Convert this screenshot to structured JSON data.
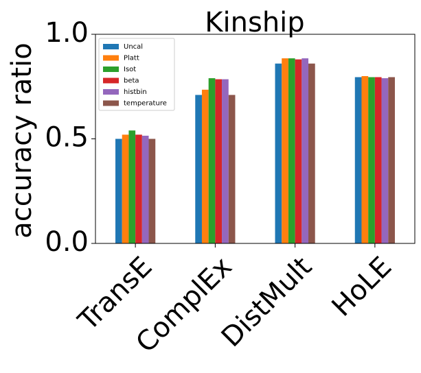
{
  "chart_data": {
    "type": "bar",
    "title": "Kinship",
    "xlabel": "",
    "ylabel": "accuracy ratio",
    "ylim": [
      0,
      1.0
    ],
    "yticks": [
      "0.0",
      "0.5",
      "1.0"
    ],
    "yticks_values": [
      0,
      0.5,
      1.0
    ],
    "categories": [
      "TransE",
      "ComplEx",
      "DistMult",
      "HoLE"
    ],
    "legend_position": "top-left",
    "series": [
      {
        "name": "Uncal",
        "color": "#1f77b4",
        "values": [
          0.5,
          0.71,
          0.86,
          0.795
        ]
      },
      {
        "name": "Platt",
        "color": "#ff7f0e",
        "values": [
          0.52,
          0.735,
          0.885,
          0.8
        ]
      },
      {
        "name": "Isot",
        "color": "#2ca02c",
        "values": [
          0.54,
          0.79,
          0.885,
          0.795
        ]
      },
      {
        "name": "beta",
        "color": "#d62728",
        "values": [
          0.52,
          0.785,
          0.88,
          0.795
        ]
      },
      {
        "name": "histbin",
        "color": "#9467bd",
        "values": [
          0.515,
          0.785,
          0.885,
          0.79
        ]
      },
      {
        "name": "temperature",
        "color": "#8c564b",
        "values": [
          0.5,
          0.71,
          0.86,
          0.795
        ]
      }
    ]
  }
}
